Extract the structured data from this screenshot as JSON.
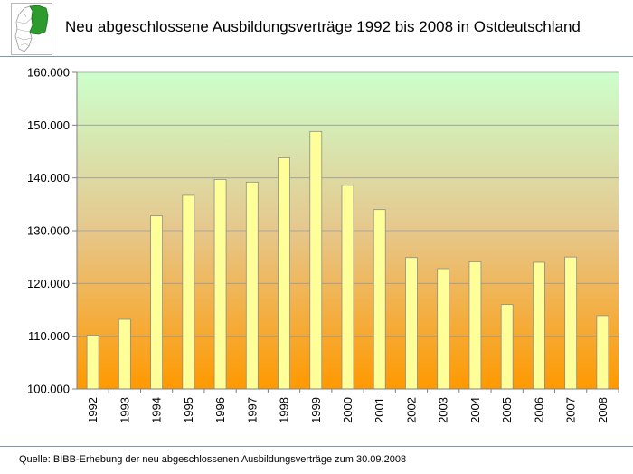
{
  "title": "Neu abgeschlossene Ausbildungsverträge 1992 bis 2008 in Ostdeutschland",
  "source": "Quelle: BIBB-Erhebung der neu abgeschlossenen Ausbildungsverträge zum 30.09.2008",
  "logo_icon": "germany-map-east-highlighted-icon",
  "colors": {
    "bar_fill": "#ffff99",
    "bar_stroke": "#8c8c8c",
    "background_top": "#ccffcc",
    "background_bottom": "#ff9900",
    "map_highlight": "#2e9b2e"
  },
  "chart_data": {
    "type": "bar",
    "title": "Neu abgeschlossene Ausbildungsverträge 1992 bis 2008 in Ostdeutschland",
    "xlabel": "",
    "ylabel": "",
    "categories": [
      "1992",
      "1993",
      "1994",
      "1995",
      "1996",
      "1997",
      "1998",
      "1999",
      "2000",
      "2001",
      "2002",
      "2003",
      "2004",
      "2005",
      "2006",
      "2007",
      "2008"
    ],
    "values": [
      110200,
      113200,
      132800,
      136700,
      139700,
      139200,
      143800,
      148800,
      138600,
      134000,
      124900,
      122800,
      124100,
      116000,
      124000,
      125000,
      113900
    ],
    "ylim": [
      100000,
      160000
    ],
    "yticks": [
      100000,
      110000,
      120000,
      130000,
      140000,
      150000,
      160000
    ],
    "ytick_labels": [
      "100.000",
      "110.000",
      "120.000",
      "130.000",
      "140.000",
      "150.000",
      "160.000"
    ],
    "grid": true,
    "legend": "none"
  }
}
